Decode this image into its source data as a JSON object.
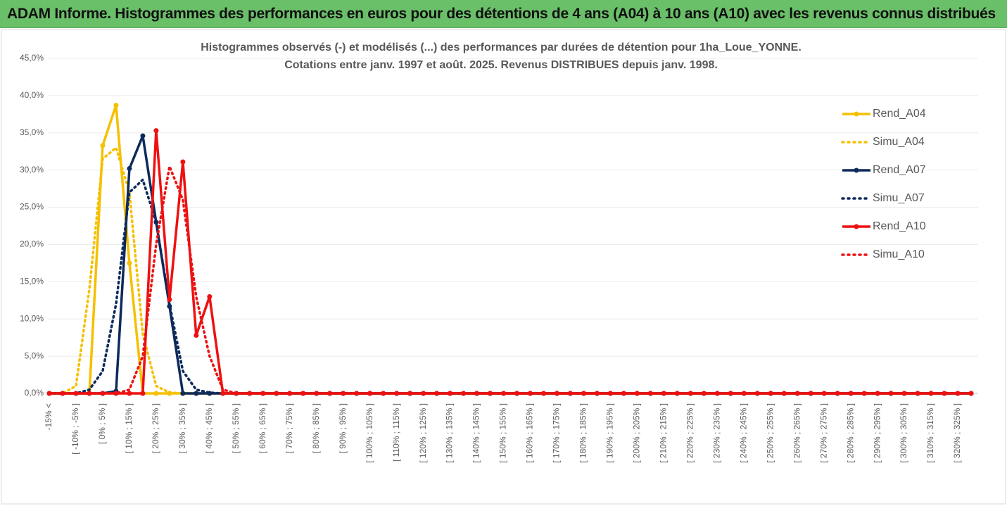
{
  "header": {
    "title": "ADAM Informe. Histogrammes des performances en euros pour des détentions de 4 ans (A04) à 10 ans (A10) avec les revenus connus distribués"
  },
  "chart_data": {
    "type": "line",
    "title": "Histogrammes observés (-) et modélisés (...) des performances par durées de détention pour 1ha_Loue_YONNE.",
    "subtitle": "Cotations entre janv. 1997 et août. 2025. Revenus DISTRIBUES depuis janv. 1998.",
    "categories": [
      "-15% <",
      null,
      "[ -10% ; -5% ]",
      null,
      "[ 0% ; 5% ]",
      null,
      "[ 10% ; 15% ]",
      null,
      "[ 20% ; 25% ]",
      null,
      "[ 30% ; 35% ]",
      null,
      "[ 40% ; 45% ]",
      null,
      "[ 50% ; 55% ]",
      null,
      "[ 60% ; 65% ]",
      null,
      "[ 70% ; 75% ]",
      null,
      "[ 80% ; 85% ]",
      null,
      "[ 90% ; 95% ]",
      null,
      "[ 100% ; 105% ]",
      null,
      "[ 110% ; 115% ]",
      null,
      "[ 120% ; 125% ]",
      null,
      "[ 130% ; 135% ]",
      null,
      "[ 140% ; 145% ]",
      null,
      "[ 150% ; 155% ]",
      null,
      "[ 160% ; 165% ]",
      null,
      "[ 170% ; 175% ]",
      null,
      "[ 180% ; 185% ]",
      null,
      "[ 190% ; 195% ]",
      null,
      "[ 200% ; 205% ]",
      null,
      "[ 210% ; 215% ]",
      null,
      "[ 220% ; 225% ]",
      null,
      "[ 230% ; 235% ]",
      null,
      "[ 240% ; 245% ]",
      null,
      "[ 250% ; 255% ]",
      null,
      "[ 260% ; 265% ]",
      null,
      "[ 270% ; 275% ]",
      null,
      "[ 280% ; 285% ]",
      null,
      "[ 290% ; 295% ]",
      null,
      "[ 300% ; 305% ]",
      null,
      "[ 310% ; 315% ]",
      null,
      "[ 320% ; 325% ]",
      null
    ],
    "series": [
      {
        "name": "Rend_A04",
        "color": "#f5c000",
        "line_style": "solid",
        "markers": true,
        "values": [
          0,
          0,
          0,
          0,
          33.3,
          38.7,
          17.5,
          0,
          0,
          0,
          0,
          0,
          0,
          0,
          0,
          0,
          0,
          0,
          0,
          0,
          0,
          0,
          0,
          0,
          0,
          0,
          0,
          0,
          0,
          0,
          0,
          0,
          0,
          0,
          0,
          0,
          0,
          0,
          0,
          0,
          0,
          0,
          0,
          0,
          0,
          0,
          0,
          0,
          0,
          0,
          0,
          0,
          0,
          0,
          0,
          0,
          0,
          0,
          0,
          0,
          0,
          0,
          0,
          0,
          0,
          0,
          0,
          0,
          0,
          0
        ]
      },
      {
        "name": "Simu_A04",
        "color": "#f5c000",
        "line_style": "dotted",
        "markers": false,
        "values": [
          0,
          0,
          1,
          14,
          31.5,
          33,
          27,
          8,
          1,
          0.1,
          0,
          0,
          0,
          0,
          0,
          0,
          0,
          0,
          0,
          0,
          0,
          0,
          0,
          0,
          0,
          0,
          0,
          0,
          0,
          0,
          0,
          0,
          0,
          0,
          0,
          0,
          0,
          0,
          0,
          0,
          0,
          0,
          0,
          0,
          0,
          0,
          0,
          0,
          0,
          0,
          0,
          0,
          0,
          0,
          0,
          0,
          0,
          0,
          0,
          0,
          0,
          0,
          0,
          0,
          0,
          0,
          0,
          0,
          0,
          0
        ]
      },
      {
        "name": "Rend_A07",
        "color": "#0d2a5c",
        "line_style": "solid",
        "markers": true,
        "values": [
          0,
          0,
          0,
          0,
          0,
          0.3,
          30.2,
          34.6,
          23,
          11.7,
          0,
          0,
          0,
          0,
          0,
          0,
          0,
          0,
          0,
          0,
          0,
          0,
          0,
          0,
          0,
          0,
          0,
          0,
          0,
          0,
          0,
          0,
          0,
          0,
          0,
          0,
          0,
          0,
          0,
          0,
          0,
          0,
          0,
          0,
          0,
          0,
          0,
          0,
          0,
          0,
          0,
          0,
          0,
          0,
          0,
          0,
          0,
          0,
          0,
          0,
          0,
          0,
          0,
          0,
          0,
          0,
          0,
          0,
          0,
          0
        ]
      },
      {
        "name": "Simu_A07",
        "color": "#0d2a5c",
        "line_style": "dotted",
        "markers": false,
        "values": [
          0,
          0,
          0,
          0.5,
          3,
          12,
          27,
          28.7,
          23,
          12,
          3,
          0.5,
          0.1,
          0,
          0,
          0,
          0,
          0,
          0,
          0,
          0,
          0,
          0,
          0,
          0,
          0,
          0,
          0,
          0,
          0,
          0,
          0,
          0,
          0,
          0,
          0,
          0,
          0,
          0,
          0,
          0,
          0,
          0,
          0,
          0,
          0,
          0,
          0,
          0,
          0,
          0,
          0,
          0,
          0,
          0,
          0,
          0,
          0,
          0,
          0,
          0,
          0,
          0,
          0,
          0,
          0,
          0,
          0,
          0,
          0
        ]
      },
      {
        "name": "Rend_A10",
        "color": "#ee1111",
        "line_style": "solid",
        "markers": true,
        "values": [
          0,
          0,
          0,
          0,
          0,
          0,
          0,
          0,
          35.3,
          12.6,
          31.1,
          7.8,
          13,
          0,
          0,
          0,
          0,
          0,
          0,
          0,
          0,
          0,
          0,
          0,
          0,
          0,
          0,
          0,
          0,
          0,
          0,
          0,
          0,
          0,
          0,
          0,
          0,
          0,
          0,
          0,
          0,
          0,
          0,
          0,
          0,
          0,
          0,
          0,
          0,
          0,
          0,
          0,
          0,
          0,
          0,
          0,
          0,
          0,
          0,
          0,
          0,
          0,
          0,
          0,
          0,
          0,
          0,
          0,
          0,
          0
        ]
      },
      {
        "name": "Simu_A10",
        "color": "#ee1111",
        "line_style": "dotted",
        "markers": false,
        "values": [
          0,
          0,
          0,
          0,
          0,
          0,
          0.5,
          5,
          20,
          30.5,
          26,
          13,
          5,
          0.5,
          0,
          0,
          0,
          0,
          0,
          0,
          0,
          0,
          0,
          0,
          0,
          0,
          0,
          0,
          0,
          0,
          0,
          0,
          0,
          0,
          0,
          0,
          0,
          0,
          0,
          0,
          0,
          0,
          0,
          0,
          0,
          0,
          0,
          0,
          0,
          0,
          0,
          0,
          0,
          0,
          0,
          0,
          0,
          0,
          0,
          0,
          0,
          0,
          0,
          0,
          0,
          0,
          0,
          0,
          0,
          0
        ]
      }
    ],
    "ylim": [
      0,
      45
    ],
    "yticks": [
      {
        "value": 0,
        "label": "0,0%"
      },
      {
        "value": 5,
        "label": "5,0%"
      },
      {
        "value": 10,
        "label": "10,0%"
      },
      {
        "value": 15,
        "label": "15,0%"
      },
      {
        "value": 20,
        "label": "20,0%"
      },
      {
        "value": 25,
        "label": "25,0%"
      },
      {
        "value": 30,
        "label": "30,0%"
      },
      {
        "value": 35,
        "label": "35,0%"
      },
      {
        "value": 40,
        "label": "40,0%"
      },
      {
        "value": 45,
        "label": "45,0%"
      }
    ],
    "grid": true,
    "legend": "right"
  }
}
